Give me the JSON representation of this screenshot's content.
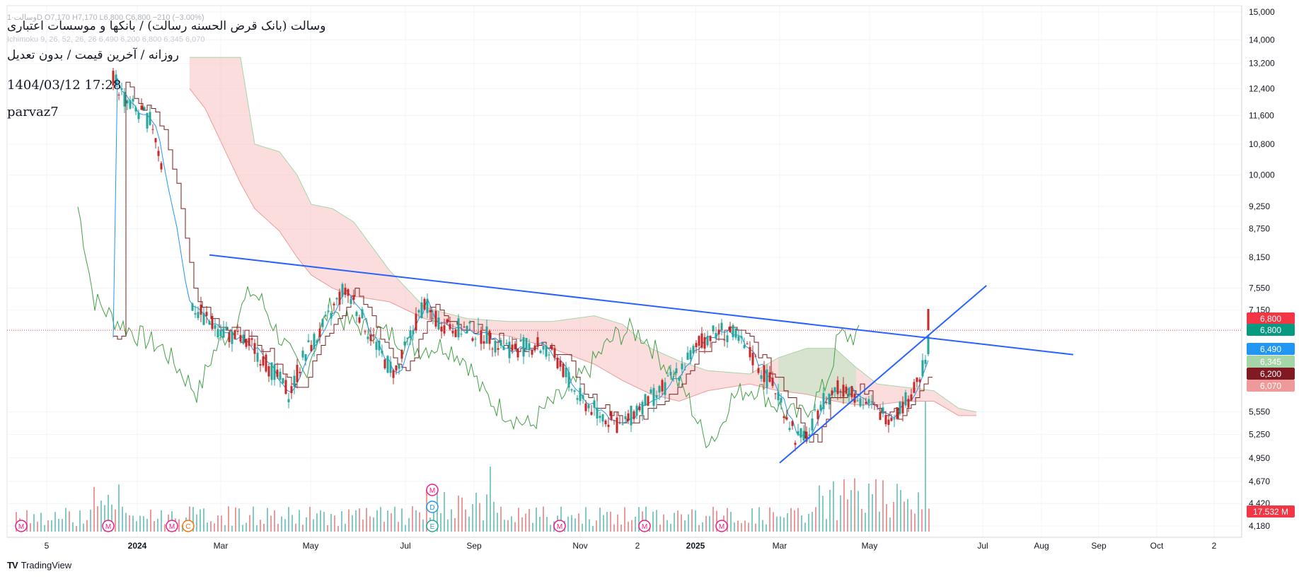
{
  "header": {
    "ohlc_line": "وسالت·1D  O7,170  H7,170  L6,800  C6,800  −210 (−3.00%)",
    "indicator_line": "Ichimoku 9, 26, 52, 26, 26  6,490  6,200  6,800  6,345  6,070",
    "title": "وسالت (بانک قرض الحسنه رسالت) / بانکها و موسسات اعتباری",
    "subtitle": "روزانه / آخرین قیمت / بدون تعدیل",
    "datetime": "1404/03/12 17:28",
    "author": "parvaz7"
  },
  "brand": {
    "logo": "TV",
    "name": "TradingView"
  },
  "colors": {
    "up": "#26a69a",
    "down": "#c62828",
    "conversion": "#2196f3",
    "base": "#7b1c1c",
    "lagging": "#43a047",
    "cloud_bear": "#f8c7c7",
    "cloud_bull": "#c8e6c9",
    "trendline": "#2962ff",
    "grid": "#f0f3fa",
    "axis_text": "#131722"
  },
  "chart_data": {
    "type": "candlestick",
    "price_scale": "log",
    "y_ticks": [
      15000,
      14000,
      13200,
      12400,
      11600,
      10800,
      10000,
      9250,
      8750,
      8150,
      7550,
      7150,
      5550,
      5250,
      4950,
      4670,
      4420,
      4180
    ],
    "x_labels": [
      "5",
      "2024",
      "Mar",
      "May",
      "Jul",
      "Sep",
      "Nov",
      "2",
      "2025",
      "Mar",
      "May",
      "Jul",
      "Aug",
      "Sep",
      "Oct",
      "2"
    ],
    "last_price": 6800,
    "price_badges": [
      {
        "label": "6,800",
        "value": 6800,
        "color": "#f23645"
      },
      {
        "label": "6,800",
        "value": 6800,
        "color": "#089981"
      },
      {
        "label": "6,490",
        "value": 6490,
        "color": "#2196f3"
      },
      {
        "label": "6,345",
        "value": 6345,
        "color": "#a5d6a7"
      },
      {
        "label": "6,200",
        "value": 6200,
        "color": "#801922"
      },
      {
        "label": "6,070",
        "value": 6070,
        "color": "#ef9a9a"
      }
    ],
    "volume_badge": "17.532 M",
    "event_markers": [
      "M",
      "M",
      "M",
      "C",
      "M",
      "D",
      "E",
      "M",
      "M",
      "M"
    ],
    "trendlines": [
      {
        "from": [
          "2024-02-20",
          8200
        ],
        "to": [
          "2025-09-10",
          6400
        ]
      },
      {
        "from": [
          "2025-03-01",
          4890
        ],
        "to": [
          "2025-07-15",
          7600
        ]
      }
    ]
  }
}
